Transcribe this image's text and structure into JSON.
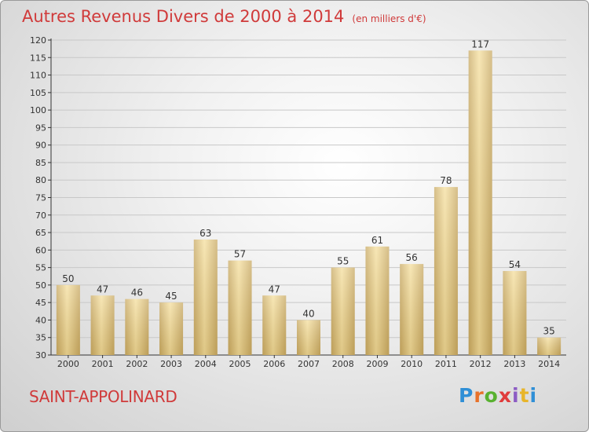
{
  "header": {
    "title": "Autres Revenus Divers de 2000 à 2014",
    "unit": "(en milliers d'€)"
  },
  "footer": {
    "town": "SAINT-APPOLINARD",
    "logo": {
      "letters": [
        "P",
        "r",
        "o",
        "x",
        "i",
        "t",
        "i"
      ],
      "colors": [
        "#2f8fd6",
        "#e8722a",
        "#58b130",
        "#e03b3b",
        "#8c5cc4",
        "#e8b52a",
        "#2f8fd6"
      ]
    }
  },
  "colors": {
    "title": "#d03a3a",
    "bar_light": "#f5df9e",
    "bar_dark": "#c8a963",
    "axis": "#333333",
    "grid": "#c8c8c8"
  },
  "chart_data": {
    "type": "bar",
    "title": "Autres Revenus Divers de 2000 à 2014",
    "xlabel": "",
    "ylabel": "",
    "categories": [
      "2000",
      "2001",
      "2002",
      "2003",
      "2004",
      "2005",
      "2006",
      "2007",
      "2008",
      "2009",
      "2010",
      "2011",
      "2012",
      "2013",
      "2014"
    ],
    "values": [
      50,
      47,
      46,
      45,
      63,
      57,
      47,
      40,
      55,
      61,
      56,
      78,
      117,
      54,
      35
    ],
    "ylim": [
      30,
      120
    ],
    "ytick_step": 5,
    "grid": true
  }
}
